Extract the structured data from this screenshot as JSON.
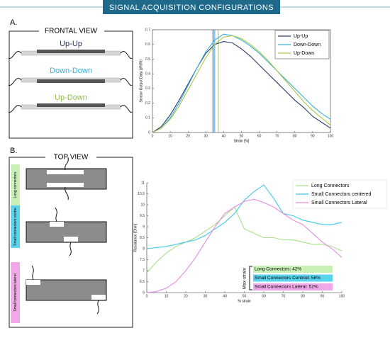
{
  "header": {
    "title": "SIGNAL ACQUISITION CONFIGURATIONS"
  },
  "panel_a": {
    "label": "A.",
    "box_title": "FRONTAL VIEW",
    "diagrams": [
      {
        "label": "Up-Up",
        "color": "#2b3a67"
      },
      {
        "label": "Down-Down",
        "color": "#3bb0d8"
      },
      {
        "label": "Up-Down",
        "color": "#8cbf3f"
      }
    ]
  },
  "panel_b": {
    "label": "B.",
    "box_title": "TOP VIEW",
    "diagrams": [
      {
        "label": "Long connectors",
        "color": "#c9f0b5"
      },
      {
        "label": "Small connectors centre",
        "color": "#5ad3ee"
      },
      {
        "label": "Small connectors lateral",
        "color": "#f0a8e8"
      }
    ]
  },
  "chart_data": [
    {
      "type": "line",
      "xlabel": "Strain [%]",
      "ylabel": "Sensor Output Data ΔR/R0",
      "x": [
        0,
        5,
        10,
        15,
        20,
        25,
        30,
        35,
        40,
        45,
        50,
        55,
        60,
        65,
        70,
        75,
        80,
        85,
        90,
        95,
        100
      ],
      "xlim": [
        0,
        100
      ],
      "xticks": [
        0,
        10,
        20,
        30,
        40,
        50,
        60,
        70,
        80,
        90,
        100
      ],
      "ylim": [
        0,
        0.7
      ],
      "yticks": [
        0,
        0.1,
        0.2,
        0.3,
        0.4,
        0.5,
        0.6,
        0.7
      ],
      "legend": "upper right",
      "box": true,
      "series": [
        {
          "name": "Up-Up",
          "color": "#2b3a67",
          "values": [
            0,
            0.04,
            0.12,
            0.22,
            0.33,
            0.44,
            0.54,
            0.6,
            0.62,
            0.61,
            0.57,
            0.52,
            0.46,
            0.4,
            0.34,
            0.28,
            0.22,
            0.17,
            0.11,
            0.07,
            0.03
          ]
        },
        {
          "name": "Down-Down",
          "color": "#3bb0d8",
          "values": [
            0,
            0.03,
            0.1,
            0.2,
            0.32,
            0.44,
            0.55,
            0.63,
            0.67,
            0.66,
            0.63,
            0.59,
            0.54,
            0.48,
            0.42,
            0.36,
            0.3,
            0.24,
            0.18,
            0.13,
            0.09
          ]
        },
        {
          "name": "Up-Down",
          "color": "#a8c84a",
          "values": [
            0,
            0.03,
            0.09,
            0.18,
            0.29,
            0.4,
            0.51,
            0.6,
            0.65,
            0.66,
            0.64,
            0.6,
            0.55,
            0.49,
            0.42,
            0.35,
            0.28,
            0.21,
            0.15,
            0.1,
            0.05
          ]
        }
      ],
      "peak_lines": [
        34,
        35,
        37
      ]
    },
    {
      "type": "line",
      "xlabel": "% strain",
      "ylabel": "Resistance [Ohm]",
      "x": [
        0,
        5,
        10,
        15,
        20,
        25,
        30,
        35,
        40,
        45,
        50,
        55,
        60,
        65,
        70,
        75,
        80,
        85,
        90,
        95,
        100
      ],
      "xlim": [
        0,
        100
      ],
      "xticks": [
        0,
        10,
        20,
        30,
        40,
        50,
        60,
        70,
        80,
        90,
        100
      ],
      "ylim": [
        6,
        11
      ],
      "yticks": [
        6,
        6.5,
        7,
        7.5,
        8,
        8.5,
        9,
        9.5,
        10,
        10.5,
        11
      ],
      "legend": "upper right",
      "box": false,
      "series": [
        {
          "name": "Long Connectors",
          "color": "#a6e08a",
          "values": [
            6.9,
            7.4,
            7.8,
            8.1,
            8.3,
            8.5,
            8.8,
            9.1,
            9.5,
            9.9,
            8.9,
            8.7,
            8.5,
            8.5,
            8.4,
            8.4,
            8.3,
            8.2,
            8.2,
            8.1,
            7.9
          ]
        },
        {
          "name": "Small Connectors centered",
          "color": "#3cc8ea",
          "values": [
            8.0,
            8.05,
            8.1,
            8.2,
            8.3,
            8.4,
            8.6,
            8.9,
            9.2,
            9.6,
            10.2,
            10.6,
            10.9,
            10.3,
            9.6,
            9.5,
            9.3,
            9.2,
            9.1,
            9.1,
            9.2
          ]
        },
        {
          "name": "Small Connectors Lateral",
          "color": "#e88ae0",
          "values": [
            6.0,
            6.05,
            6.2,
            6.5,
            7.0,
            7.6,
            8.3,
            9.0,
            9.6,
            9.9,
            10.15,
            10.25,
            10.1,
            9.9,
            9.6,
            9.3,
            9.1,
            8.7,
            8.3,
            8.0,
            7.6
          ]
        }
      ],
      "annotation": {
        "title": "Max strain",
        "items": [
          {
            "text": "Long Connectors: 42%",
            "color": "#c9f0b5"
          },
          {
            "text": "Small Connectors Centred: 56%",
            "color": "#5ad3ee"
          },
          {
            "text": "Small Connectors Lateral: 52%",
            "color": "#f0a8e8"
          }
        ]
      }
    }
  ]
}
